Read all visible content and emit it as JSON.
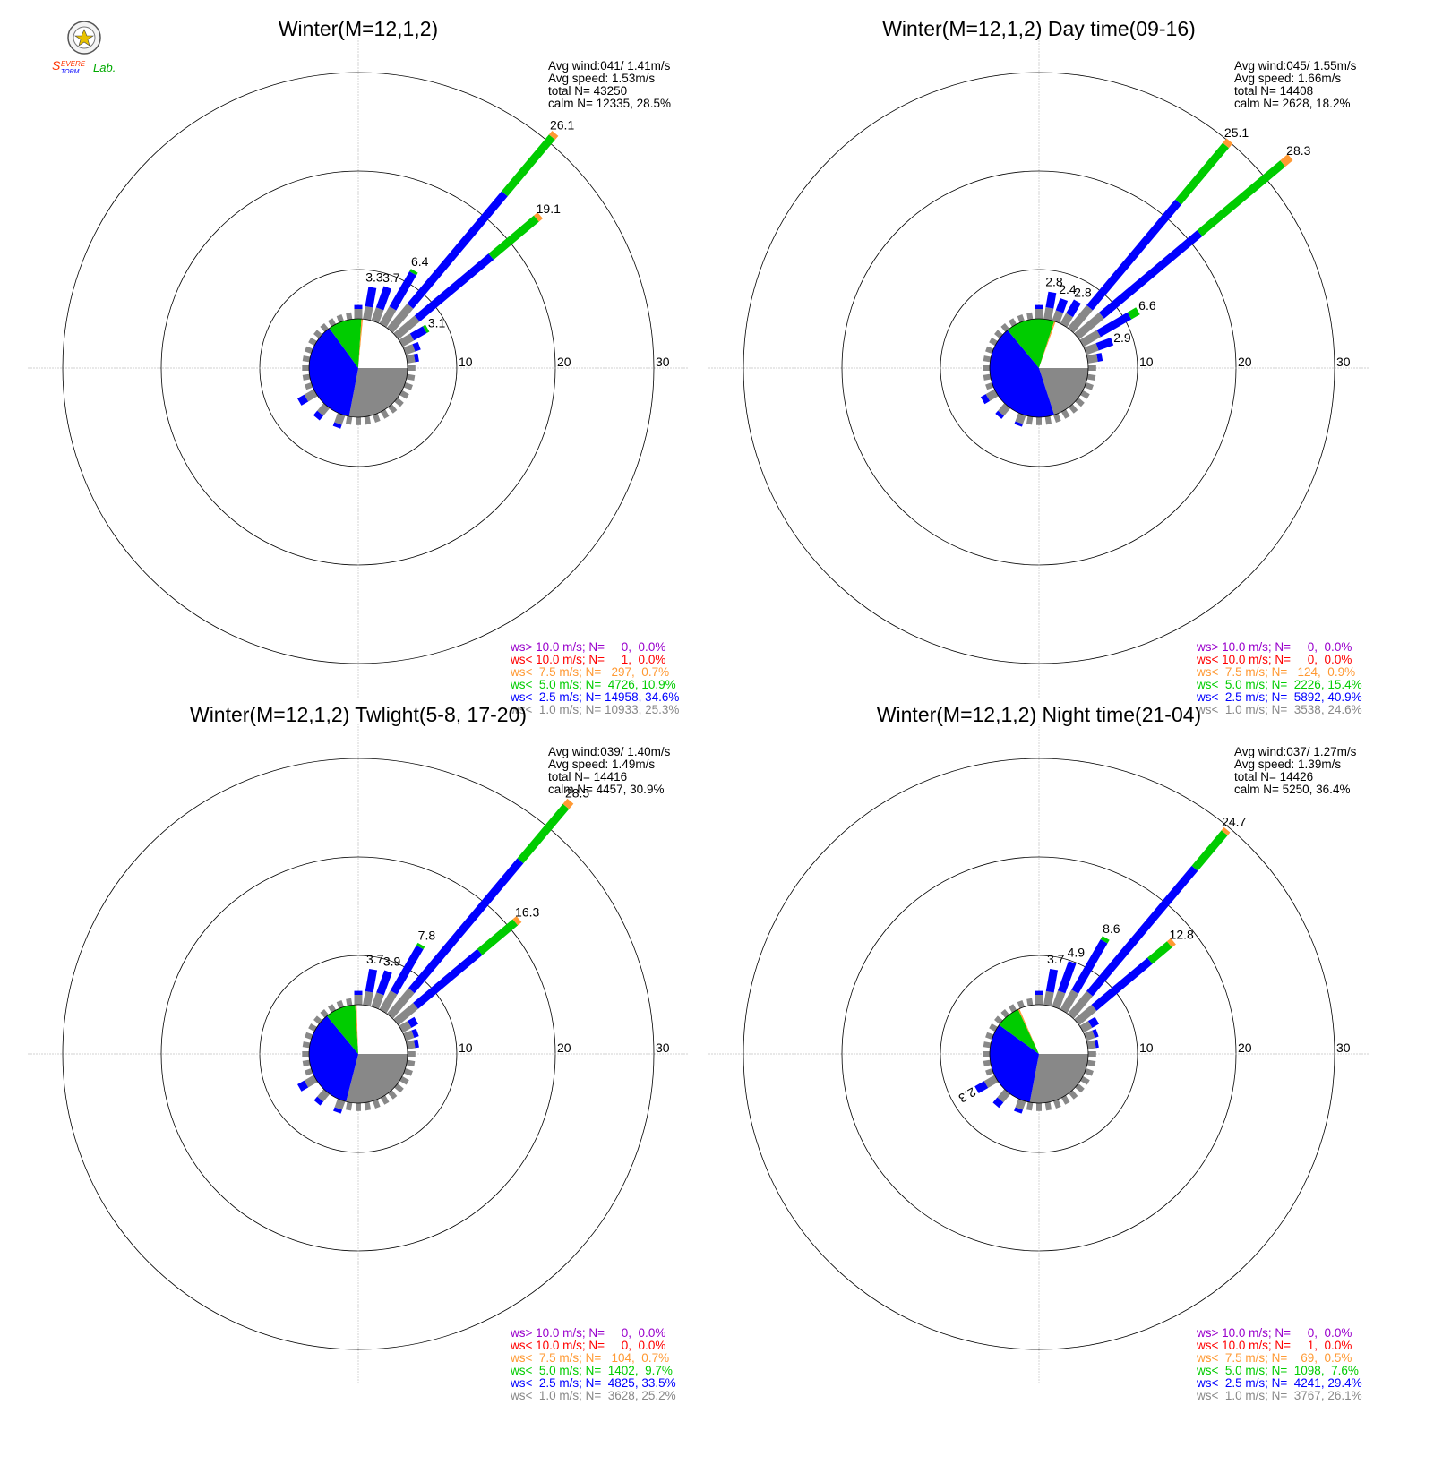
{
  "logo": {
    "text_top": "Severe",
    "text_bottom": "Storm",
    "text_lab": "Lab."
  },
  "colors": {
    "c_gt10": "#9900cc",
    "c_lt10": "#ff0000",
    "c_lt75": "#ff9933",
    "c_lt5": "#00cc00",
    "c_lt25": "#0000ff",
    "c_lt1": "#888888"
  },
  "chart_data": [
    {
      "type": "wind-rose",
      "title": "Winter(M=12,1,2)",
      "rings": [
        10,
        20,
        30
      ],
      "ring_labels": [
        "10",
        "20",
        "30"
      ],
      "stats": [
        "Avg wind:041/ 1.41m/s",
        "Avg speed: 1.53m/s",
        "total N=      43250",
        "calm N=  12335,  28.5%"
      ],
      "calm_pie": [
        {
          "bin": "lt1",
          "pct": 28.0
        },
        {
          "bin": "lt25",
          "pct": 37.0
        },
        {
          "bin": "lt5",
          "pct": 11.0
        },
        {
          "bin": "lt75",
          "pct": 0.5
        },
        {
          "bin": "white",
          "pct": 23.5
        }
      ],
      "petals": [
        {
          "dir": 10,
          "total": 3.3,
          "lt1": 1.3,
          "lt25": 2.0,
          "lt5": 0.0,
          "lt75": 0.0,
          "label": "3.3"
        },
        {
          "dir": 20,
          "total": 3.7,
          "lt1": 1.4,
          "lt25": 2.3,
          "lt5": 0.0,
          "lt75": 0.0,
          "label": "3.7"
        },
        {
          "dir": 30,
          "total": 6.4,
          "lt1": 2.0,
          "lt25": 4.1,
          "lt5": 0.3,
          "lt75": 0.0,
          "label": "6.4"
        },
        {
          "dir": 40,
          "total": 26.1,
          "lt1": 3.2,
          "lt25": 14.9,
          "lt5": 7.5,
          "lt75": 0.5,
          "label": "26.1"
        },
        {
          "dir": 50,
          "total": 19.1,
          "lt1": 2.8,
          "lt25": 9.8,
          "lt5": 6.0,
          "lt75": 0.5,
          "label": "19.1"
        },
        {
          "dir": 60,
          "total": 3.1,
          "lt1": 1.3,
          "lt25": 1.5,
          "lt5": 0.3,
          "lt75": 0.0,
          "label": "3.1"
        },
        {
          "dir": 70,
          "total": 1.6,
          "lt1": 1.0,
          "lt25": 0.6,
          "lt5": 0.0,
          "lt75": 0.0,
          "label": ""
        },
        {
          "dir": 80,
          "total": 1.2,
          "lt1": 0.8,
          "lt25": 0.4,
          "lt5": 0.0,
          "lt75": 0.0,
          "label": ""
        },
        {
          "dir": 200,
          "total": 1.4,
          "lt1": 1.0,
          "lt25": 0.4,
          "lt5": 0.0,
          "lt75": 0.0,
          "label": ""
        },
        {
          "dir": 220,
          "total": 1.6,
          "lt1": 1.0,
          "lt25": 0.6,
          "lt5": 0.0,
          "lt75": 0.0,
          "label": ""
        },
        {
          "dir": 240,
          "total": 1.9,
          "lt1": 1.1,
          "lt25": 0.8,
          "lt5": 0.0,
          "lt75": 0.0,
          "label": ""
        },
        {
          "dir": 0,
          "total": 1.4,
          "lt1": 1.0,
          "lt25": 0.4,
          "lt5": 0.0,
          "lt75": 0.0,
          "label": ""
        }
      ],
      "legend": [
        {
          "text": "ws> 10.0 m/s; N=     0,  0.0%",
          "color": "#9900cc"
        },
        {
          "text": "ws< 10.0 m/s; N=     1,  0.0%",
          "color": "#ff0000"
        },
        {
          "text": "ws<  7.5 m/s; N=   297,  0.7%",
          "color": "#ff9933"
        },
        {
          "text": "ws<  5.0 m/s; N=  4726, 10.9%",
          "color": "#00cc00"
        },
        {
          "text": "ws<  2.5 m/s; N= 14958, 34.6%",
          "color": "#0000ff"
        },
        {
          "text": "ws<  1.0 m/s; N= 10933, 25.3%",
          "color": "#888888"
        }
      ]
    },
    {
      "type": "wind-rose",
      "title": "Winter(M=12,1,2) Day time(09-16)",
      "rings": [
        10,
        20,
        30
      ],
      "ring_labels": [
        "10",
        "20",
        "30"
      ],
      "stats": [
        "Avg wind:045/ 1.55m/s",
        "Avg speed: 1.66m/s",
        "total N=      14408",
        "calm N=   2628,  18.2%"
      ],
      "calm_pie": [
        {
          "bin": "lt1",
          "pct": 20.0
        },
        {
          "bin": "lt25",
          "pct": 44.0
        },
        {
          "bin": "lt5",
          "pct": 16.0
        },
        {
          "bin": "lt75",
          "pct": 0.5
        },
        {
          "bin": "white",
          "pct": 19.5
        }
      ],
      "petals": [
        {
          "dir": 10,
          "total": 2.8,
          "lt1": 1.2,
          "lt25": 1.6,
          "lt5": 0.0,
          "lt75": 0.0,
          "label": "2.8"
        },
        {
          "dir": 20,
          "total": 2.4,
          "lt1": 1.1,
          "lt25": 1.3,
          "lt5": 0.0,
          "lt75": 0.0,
          "label": "2.4"
        },
        {
          "dir": 30,
          "total": 2.8,
          "lt1": 1.2,
          "lt25": 1.6,
          "lt5": 0.0,
          "lt75": 0.0,
          "label": "2.8"
        },
        {
          "dir": 40,
          "total": 25.1,
          "lt1": 3.0,
          "lt25": 14.0,
          "lt5": 7.5,
          "lt75": 0.6,
          "label": "25.1"
        },
        {
          "dir": 50,
          "total": 28.3,
          "lt1": 3.3,
          "lt25": 13.0,
          "lt5": 11.0,
          "lt75": 1.0,
          "label": "28.3"
        },
        {
          "dir": 60,
          "total": 6.6,
          "lt1": 2.0,
          "lt25": 3.6,
          "lt5": 1.0,
          "lt75": 0.0,
          "label": "6.6"
        },
        {
          "dir": 70,
          "total": 2.9,
          "lt1": 1.3,
          "lt25": 1.6,
          "lt5": 0.0,
          "lt75": 0.0,
          "label": "2.9"
        },
        {
          "dir": 80,
          "total": 1.5,
          "lt1": 1.0,
          "lt25": 0.5,
          "lt5": 0.0,
          "lt75": 0.0,
          "label": ""
        },
        {
          "dir": 200,
          "total": 1.2,
          "lt1": 0.9,
          "lt25": 0.3,
          "lt5": 0.0,
          "lt75": 0.0,
          "label": ""
        },
        {
          "dir": 220,
          "total": 1.4,
          "lt1": 1.0,
          "lt25": 0.4,
          "lt5": 0.0,
          "lt75": 0.0,
          "label": ""
        },
        {
          "dir": 240,
          "total": 1.6,
          "lt1": 1.0,
          "lt25": 0.6,
          "lt5": 0.0,
          "lt75": 0.0,
          "label": ""
        },
        {
          "dir": 0,
          "total": 1.4,
          "lt1": 1.0,
          "lt25": 0.4,
          "lt5": 0.0,
          "lt75": 0.0,
          "label": ""
        }
      ],
      "legend": [
        {
          "text": "ws> 10.0 m/s; N=     0,  0.0%",
          "color": "#9900cc"
        },
        {
          "text": "ws< 10.0 m/s; N=     0,  0.0%",
          "color": "#ff0000"
        },
        {
          "text": "ws<  7.5 m/s; N=   124,  0.9%",
          "color": "#ff9933"
        },
        {
          "text": "ws<  5.0 m/s; N=  2226, 15.4%",
          "color": "#00cc00"
        },
        {
          "text": "ws<  2.5 m/s; N=  5892, 40.9%",
          "color": "#0000ff"
        },
        {
          "text": "ws<  1.0 m/s; N=  3538, 24.6%",
          "color": "#888888"
        }
      ]
    },
    {
      "type": "wind-rose",
      "title": "Winter(M=12,1,2) Twlight(5-8, 17-20)",
      "rings": [
        10,
        20,
        30
      ],
      "ring_labels": [
        "10",
        "20",
        "30"
      ],
      "stats": [
        "Avg wind:039/ 1.40m/s",
        "Avg speed: 1.49m/s",
        "total N=      14416",
        "calm N=   4457,  30.9%"
      ],
      "calm_pie": [
        {
          "bin": "lt1",
          "pct": 29.0
        },
        {
          "bin": "lt25",
          "pct": 35.0
        },
        {
          "bin": "lt5",
          "pct": 10.0
        },
        {
          "bin": "lt75",
          "pct": 0.5
        },
        {
          "bin": "white",
          "pct": 25.5
        }
      ],
      "petals": [
        {
          "dir": 10,
          "total": 3.7,
          "lt1": 1.4,
          "lt25": 2.3,
          "lt5": 0.0,
          "lt75": 0.0,
          "label": "3.7"
        },
        {
          "dir": 20,
          "total": 3.9,
          "lt1": 1.5,
          "lt25": 2.4,
          "lt5": 0.0,
          "lt75": 0.0,
          "label": "3.9"
        },
        {
          "dir": 30,
          "total": 7.8,
          "lt1": 2.2,
          "lt25": 5.3,
          "lt5": 0.3,
          "lt75": 0.0,
          "label": "7.8"
        },
        {
          "dir": 40,
          "total": 28.5,
          "lt1": 3.4,
          "lt25": 17.2,
          "lt5": 7.2,
          "lt75": 0.7,
          "label": "28.5"
        },
        {
          "dir": 50,
          "total": 16.3,
          "lt1": 2.6,
          "lt25": 8.5,
          "lt5": 4.7,
          "lt75": 0.5,
          "label": "16.3"
        },
        {
          "dir": 60,
          "total": 1.8,
          "lt1": 1.0,
          "lt25": 0.8,
          "lt5": 0.0,
          "lt75": 0.0,
          "label": ""
        },
        {
          "dir": 70,
          "total": 1.4,
          "lt1": 0.9,
          "lt25": 0.5,
          "lt5": 0.0,
          "lt75": 0.0,
          "label": ""
        },
        {
          "dir": 80,
          "total": 1.2,
          "lt1": 0.8,
          "lt25": 0.4,
          "lt5": 0.0,
          "lt75": 0.0,
          "label": ""
        },
        {
          "dir": 200,
          "total": 1.3,
          "lt1": 0.9,
          "lt25": 0.4,
          "lt5": 0.0,
          "lt75": 0.0,
          "label": ""
        },
        {
          "dir": 220,
          "total": 1.5,
          "lt1": 1.0,
          "lt25": 0.5,
          "lt5": 0.0,
          "lt75": 0.0,
          "label": ""
        },
        {
          "dir": 240,
          "total": 1.9,
          "lt1": 1.1,
          "lt25": 0.8,
          "lt5": 0.0,
          "lt75": 0.0,
          "label": ""
        },
        {
          "dir": 0,
          "total": 1.4,
          "lt1": 1.0,
          "lt25": 0.4,
          "lt5": 0.0,
          "lt75": 0.0,
          "label": ""
        }
      ],
      "legend": [
        {
          "text": "ws> 10.0 m/s; N=     0,  0.0%",
          "color": "#9900cc"
        },
        {
          "text": "ws< 10.0 m/s; N=     0,  0.0%",
          "color": "#ff0000"
        },
        {
          "text": "ws<  7.5 m/s; N=   104,  0.7%",
          "color": "#ff9933"
        },
        {
          "text": "ws<  5.0 m/s; N=  1402,  9.7%",
          "color": "#00cc00"
        },
        {
          "text": "ws<  2.5 m/s; N=  4825, 33.5%",
          "color": "#0000ff"
        },
        {
          "text": "ws<  1.0 m/s; N=  3628, 25.2%",
          "color": "#888888"
        }
      ]
    },
    {
      "type": "wind-rose",
      "title": "Winter(M=12,1,2) Night time(21-04)",
      "rings": [
        10,
        20,
        30
      ],
      "ring_labels": [
        "10",
        "20",
        "30"
      ],
      "stats": [
        "Avg wind:037/ 1.27m/s",
        "Avg speed: 1.39m/s",
        "total N=      14426",
        "calm N=   5250,  36.4%"
      ],
      "calm_pie": [
        {
          "bin": "lt1",
          "pct": 28.0
        },
        {
          "bin": "lt25",
          "pct": 32.0
        },
        {
          "bin": "lt5",
          "pct": 8.0
        },
        {
          "bin": "lt75",
          "pct": 0.5
        },
        {
          "bin": "white",
          "pct": 31.5
        }
      ],
      "petals": [
        {
          "dir": 10,
          "total": 3.7,
          "lt1": 1.4,
          "lt25": 2.3,
          "lt5": 0.0,
          "lt75": 0.0,
          "label": "3.7"
        },
        {
          "dir": 20,
          "total": 4.9,
          "lt1": 1.7,
          "lt25": 3.2,
          "lt5": 0.0,
          "lt75": 0.0,
          "label": "4.9"
        },
        {
          "dir": 30,
          "total": 8.6,
          "lt1": 2.3,
          "lt25": 5.9,
          "lt5": 0.4,
          "lt75": 0.0,
          "label": "8.6"
        },
        {
          "dir": 40,
          "total": 24.7,
          "lt1": 3.0,
          "lt25": 16.6,
          "lt5": 4.7,
          "lt75": 0.4,
          "label": "24.7"
        },
        {
          "dir": 50,
          "total": 12.8,
          "lt1": 2.3,
          "lt25": 7.4,
          "lt5": 2.6,
          "lt75": 0.5,
          "label": "12.8"
        },
        {
          "dir": 60,
          "total": 1.8,
          "lt1": 1.0,
          "lt25": 0.8,
          "lt5": 0.0,
          "lt75": 0.0,
          "label": ""
        },
        {
          "dir": 70,
          "total": 1.3,
          "lt1": 0.9,
          "lt25": 0.4,
          "lt5": 0.0,
          "lt75": 0.0,
          "label": ""
        },
        {
          "dir": 80,
          "total": 1.1,
          "lt1": 0.8,
          "lt25": 0.3,
          "lt5": 0.0,
          "lt75": 0.0,
          "label": ""
        },
        {
          "dir": 200,
          "total": 1.3,
          "lt1": 0.9,
          "lt25": 0.4,
          "lt5": 0.0,
          "lt75": 0.0,
          "label": ""
        },
        {
          "dir": 220,
          "total": 1.8,
          "lt1": 1.1,
          "lt25": 0.7,
          "lt5": 0.0,
          "lt75": 0.0,
          "label": ""
        },
        {
          "dir": 240,
          "total": 2.3,
          "lt1": 1.2,
          "lt25": 1.1,
          "lt5": 0.0,
          "lt75": 0.0,
          "label": "2.3"
        },
        {
          "dir": 0,
          "total": 1.4,
          "lt1": 1.0,
          "lt25": 0.4,
          "lt5": 0.0,
          "lt75": 0.0,
          "label": ""
        }
      ],
      "legend": [
        {
          "text": "ws> 10.0 m/s; N=     0,  0.0%",
          "color": "#9900cc"
        },
        {
          "text": "ws< 10.0 m/s; N=     1,  0.0%",
          "color": "#ff0000"
        },
        {
          "text": "ws<  7.5 m/s; N=    69,  0.5%",
          "color": "#ff9933"
        },
        {
          "text": "ws<  5.0 m/s; N=  1098,  7.6%",
          "color": "#00cc00"
        },
        {
          "text": "ws<  2.5 m/s; N=  4241, 29.4%",
          "color": "#0000ff"
        },
        {
          "text": "ws<  1.0 m/s; N=  3767, 26.1%",
          "color": "#888888"
        }
      ]
    }
  ]
}
